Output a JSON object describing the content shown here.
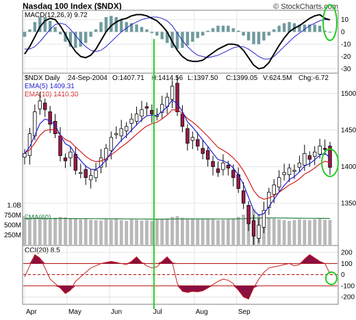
{
  "header": {
    "title": "Nasdaq 100 Index ($NDX)",
    "source": "© StockCharts.com"
  },
  "chart_data": [
    {
      "type": "line",
      "panel": "macd",
      "title": "MACD(12,26,9) 9.72",
      "yticks": [
        -30,
        -20,
        -10,
        0,
        10
      ],
      "ylim": [
        -33,
        17
      ],
      "x": [
        0,
        4,
        8,
        12,
        16,
        20,
        24,
        28,
        32,
        36,
        40,
        44,
        48,
        52,
        56,
        60,
        64,
        68,
        72,
        76,
        80,
        84,
        88,
        92,
        96,
        100,
        104,
        108,
        112,
        116,
        120,
        124,
        128,
        132,
        136,
        140,
        144,
        148,
        152,
        156,
        160,
        164,
        168,
        172,
        176,
        180,
        184,
        188,
        192,
        196,
        200,
        204,
        208,
        212,
        216,
        220,
        224,
        228,
        232,
        236,
        240
      ],
      "series": [
        {
          "name": "MACD",
          "values": [
            -18,
            -12,
            -4,
            4,
            9,
            11,
            10,
            5,
            -2,
            -10,
            -16,
            -20,
            -21,
            -19,
            -14,
            -7,
            0,
            5,
            8,
            10,
            11,
            13,
            14,
            14,
            13,
            11,
            9,
            5,
            0,
            -8,
            -15,
            -20,
            -23,
            -24,
            -24,
            -23,
            -20,
            -17,
            -14,
            -12,
            -10,
            -10,
            -11,
            -15,
            -21,
            -27,
            -30,
            -29,
            -25,
            -18,
            -11,
            -5,
            0,
            3,
            5,
            8,
            11,
            13,
            14,
            11,
            9.72
          ]
        },
        {
          "name": "Signal",
          "values": [
            -14,
            -14,
            -12,
            -8,
            -3,
            2,
            6,
            7,
            6,
            2,
            -3,
            -8,
            -12,
            -15,
            -16,
            -15,
            -12,
            -8,
            -4,
            0,
            3,
            6,
            8,
            10,
            11,
            12,
            12,
            11,
            9,
            5,
            -1,
            -7,
            -12,
            -16,
            -19,
            -20,
            -21,
            -20,
            -19,
            -17,
            -15,
            -13,
            -12,
            -12,
            -14,
            -17,
            -20,
            -22,
            -22,
            -20,
            -16,
            -12,
            -8,
            -4,
            -1,
            2,
            5,
            7,
            9,
            10,
            9.8
          ]
        }
      ],
      "histogram_color": "#6f9a9e"
    },
    {
      "type": "candlestick",
      "panel": "price",
      "title": "$NDX Daily",
      "quote": {
        "date": "24-Sep-2004",
        "open": "O:1407.71",
        "high": "H:1414.56",
        "low": "L:1397.50",
        "close": "C:1399.05",
        "volume": "V:624.5M",
        "change": "Chg:-6.72"
      },
      "legend": [
        {
          "label": "EMA(5) 1409.31",
          "color": "#1f1fcf"
        },
        {
          "label": "EMA(10) 1410.30",
          "color": "#d21c1c"
        }
      ],
      "yticks": [
        1350,
        1400,
        1450,
        1500
      ],
      "ylim": [
        1295,
        1525
      ],
      "x": [
        0,
        4,
        8,
        12,
        16,
        20,
        24,
        28,
        32,
        36,
        40,
        44,
        48,
        52,
        56,
        60,
        64,
        68,
        72,
        76,
        80,
        84,
        88,
        92,
        96,
        100,
        104,
        108,
        112,
        116,
        120,
        124,
        128,
        132,
        136,
        140,
        144,
        148,
        152,
        156,
        160,
        164,
        168,
        172,
        176,
        180,
        184,
        188,
        192,
        196,
        200,
        204,
        208,
        212,
        216,
        220,
        224,
        228,
        232,
        236,
        240
      ],
      "close": [
        1418,
        1445,
        1475,
        1490,
        1478,
        1458,
        1445,
        1415,
        1408,
        1420,
        1395,
        1392,
        1385,
        1388,
        1395,
        1412,
        1425,
        1440,
        1445,
        1452,
        1455,
        1465,
        1472,
        1478,
        1480,
        1472,
        1470,
        1485,
        1495,
        1510,
        1475,
        1455,
        1432,
        1440,
        1428,
        1418,
        1410,
        1400,
        1392,
        1405,
        1398,
        1385,
        1370,
        1350,
        1322,
        1305,
        1320,
        1340,
        1365,
        1375,
        1385,
        1392,
        1398,
        1395,
        1405,
        1418,
        1410,
        1420,
        1428,
        1424,
        1399
      ]
    },
    {
      "type": "bar",
      "panel": "volume",
      "yticks": [
        "250M",
        "500M",
        "750M",
        "1.0B"
      ],
      "ylim": [
        0,
        1100
      ],
      "legend": [
        {
          "label": "EMA(60)",
          "color": "#1e7f3c"
        }
      ],
      "x": [
        0,
        4,
        8,
        12,
        16,
        20,
        24,
        28,
        32,
        36,
        40,
        44,
        48,
        52,
        56,
        60,
        64,
        68,
        72,
        76,
        80,
        84,
        88,
        92,
        96,
        100,
        104,
        108,
        112,
        116,
        120,
        124,
        128,
        132,
        136,
        140,
        144,
        148,
        152,
        156,
        160,
        164,
        168,
        172,
        176,
        180,
        184,
        188,
        192,
        196,
        200,
        204,
        208,
        212,
        216,
        220,
        224,
        228,
        232,
        236,
        240
      ],
      "values": [
        720,
        650,
        700,
        690,
        660,
        640,
        680,
        700,
        690,
        670,
        660,
        640,
        650,
        630,
        620,
        610,
        640,
        630,
        650,
        620,
        600,
        640,
        630,
        610,
        620,
        600,
        650,
        640,
        660,
        700,
        720,
        680,
        660,
        650,
        640,
        660,
        650,
        640,
        620,
        630,
        640,
        660,
        700,
        760,
        850,
        900,
        780,
        700,
        680,
        660,
        640,
        620,
        600,
        620,
        640,
        630,
        620,
        640,
        650,
        630,
        625
      ],
      "ema_values": [
        660,
        660,
        662,
        662,
        662,
        660,
        660,
        661,
        661,
        660,
        660,
        659,
        659,
        658,
        656,
        654,
        654,
        653,
        653,
        652,
        650,
        650,
        649,
        648,
        647,
        645,
        645,
        645,
        646,
        648,
        650,
        651,
        651,
        651,
        651,
        651,
        651,
        651,
        650,
        650,
        650,
        651,
        653,
        657,
        663,
        671,
        674,
        675,
        675,
        675,
        674,
        672,
        670,
        669,
        668,
        667,
        665,
        665,
        664,
        663,
        662
      ]
    },
    {
      "type": "area",
      "panel": "cci",
      "title": "CCI(20) 8.5",
      "yticks": [
        -200,
        -100,
        0,
        100,
        200
      ],
      "ylim": [
        -260,
        250
      ],
      "reference_lines": [
        100,
        0,
        -100
      ],
      "x": [
        0,
        4,
        8,
        12,
        16,
        20,
        24,
        28,
        32,
        36,
        40,
        44,
        48,
        52,
        56,
        60,
        64,
        68,
        72,
        76,
        80,
        84,
        88,
        92,
        96,
        100,
        104,
        108,
        112,
        116,
        120,
        124,
        128,
        132,
        136,
        140,
        144,
        148,
        152,
        156,
        160,
        164,
        168,
        172,
        176,
        180,
        184,
        188,
        192,
        196,
        200,
        204,
        208,
        212,
        216,
        220,
        224,
        228,
        232,
        236,
        240
      ],
      "values": [
        -20,
        80,
        180,
        150,
        60,
        -40,
        -80,
        -120,
        -170,
        -140,
        -60,
        -20,
        20,
        60,
        80,
        100,
        110,
        120,
        110,
        100,
        90,
        120,
        160,
        110,
        80,
        60,
        70,
        120,
        160,
        110,
        -80,
        -150,
        -160,
        -150,
        -155,
        -145,
        -120,
        -90,
        -60,
        -40,
        -50,
        -80,
        -140,
        -200,
        -220,
        -120,
        -40,
        20,
        60,
        70,
        80,
        90,
        100,
        80,
        90,
        140,
        180,
        150,
        120,
        100,
        8.5
      ]
    }
  ],
  "x_axis": {
    "months": [
      "Apr",
      "May",
      "Jun",
      "Jul",
      "Aug",
      "Sep"
    ],
    "month_x": [
      0,
      33.33,
      66.67,
      100,
      133.33,
      166.67
    ]
  },
  "colors": {
    "marker_line": "#22cc22",
    "highlight_circle": "#22cc22",
    "up_candle": "#ffffff",
    "down_candle": "#9b1b4b",
    "volume_bar": "#b9b9b9",
    "cci_fill": "#8b0f3f",
    "cci_reference": "#b40000",
    "macd_line": "#000000",
    "signal_line": "#2222cc"
  }
}
